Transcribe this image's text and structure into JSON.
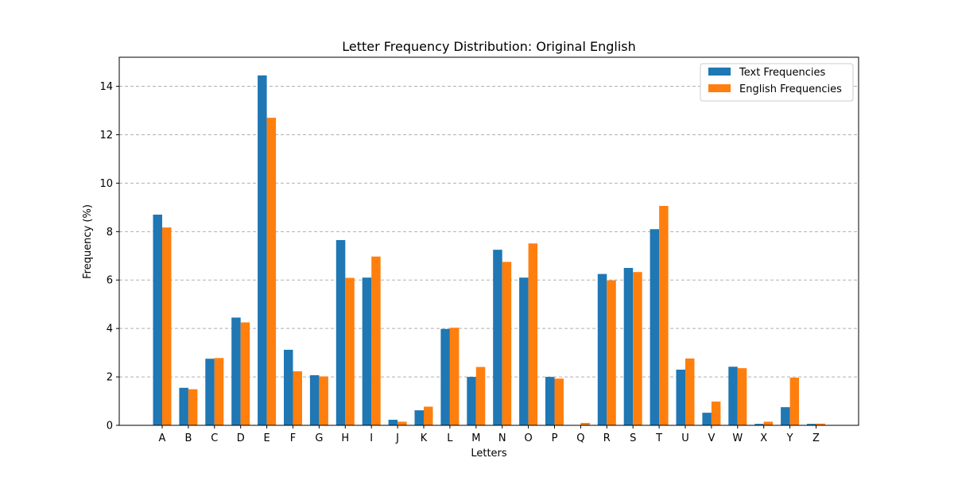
{
  "chart_data": {
    "type": "bar",
    "title": "Letter Frequency Distribution: Original English",
    "xlabel": "Letters",
    "ylabel": "Frequency (%)",
    "ylim": [
      0,
      15.2
    ],
    "yticks": [
      "0",
      "2",
      "4",
      "6",
      "8",
      "10",
      "12",
      "14"
    ],
    "grid": "horizontal dashed",
    "legend_position": "top-right",
    "categories": [
      "A",
      "B",
      "C",
      "D",
      "E",
      "F",
      "G",
      "H",
      "I",
      "J",
      "K",
      "L",
      "M",
      "N",
      "O",
      "P",
      "Q",
      "R",
      "S",
      "T",
      "U",
      "V",
      "W",
      "X",
      "Y",
      "Z"
    ],
    "series": [
      {
        "name": "Text Frequencies",
        "color": "#1f77b4",
        "values": [
          8.7,
          1.55,
          2.75,
          4.45,
          14.45,
          3.12,
          2.07,
          7.65,
          6.1,
          0.23,
          0.62,
          3.98,
          2.0,
          7.25,
          6.1,
          2.0,
          0.0,
          6.25,
          6.5,
          8.1,
          2.3,
          0.52,
          2.42,
          0.06,
          0.75,
          0.06
        ]
      },
      {
        "name": "English Frequencies",
        "color": "#ff7f0e",
        "values": [
          8.17,
          1.49,
          2.78,
          4.25,
          12.7,
          2.23,
          2.02,
          6.09,
          6.97,
          0.15,
          0.77,
          4.03,
          2.41,
          6.75,
          7.51,
          1.93,
          0.1,
          5.99,
          6.33,
          9.06,
          2.76,
          0.98,
          2.36,
          0.15,
          1.97,
          0.07
        ]
      }
    ]
  }
}
